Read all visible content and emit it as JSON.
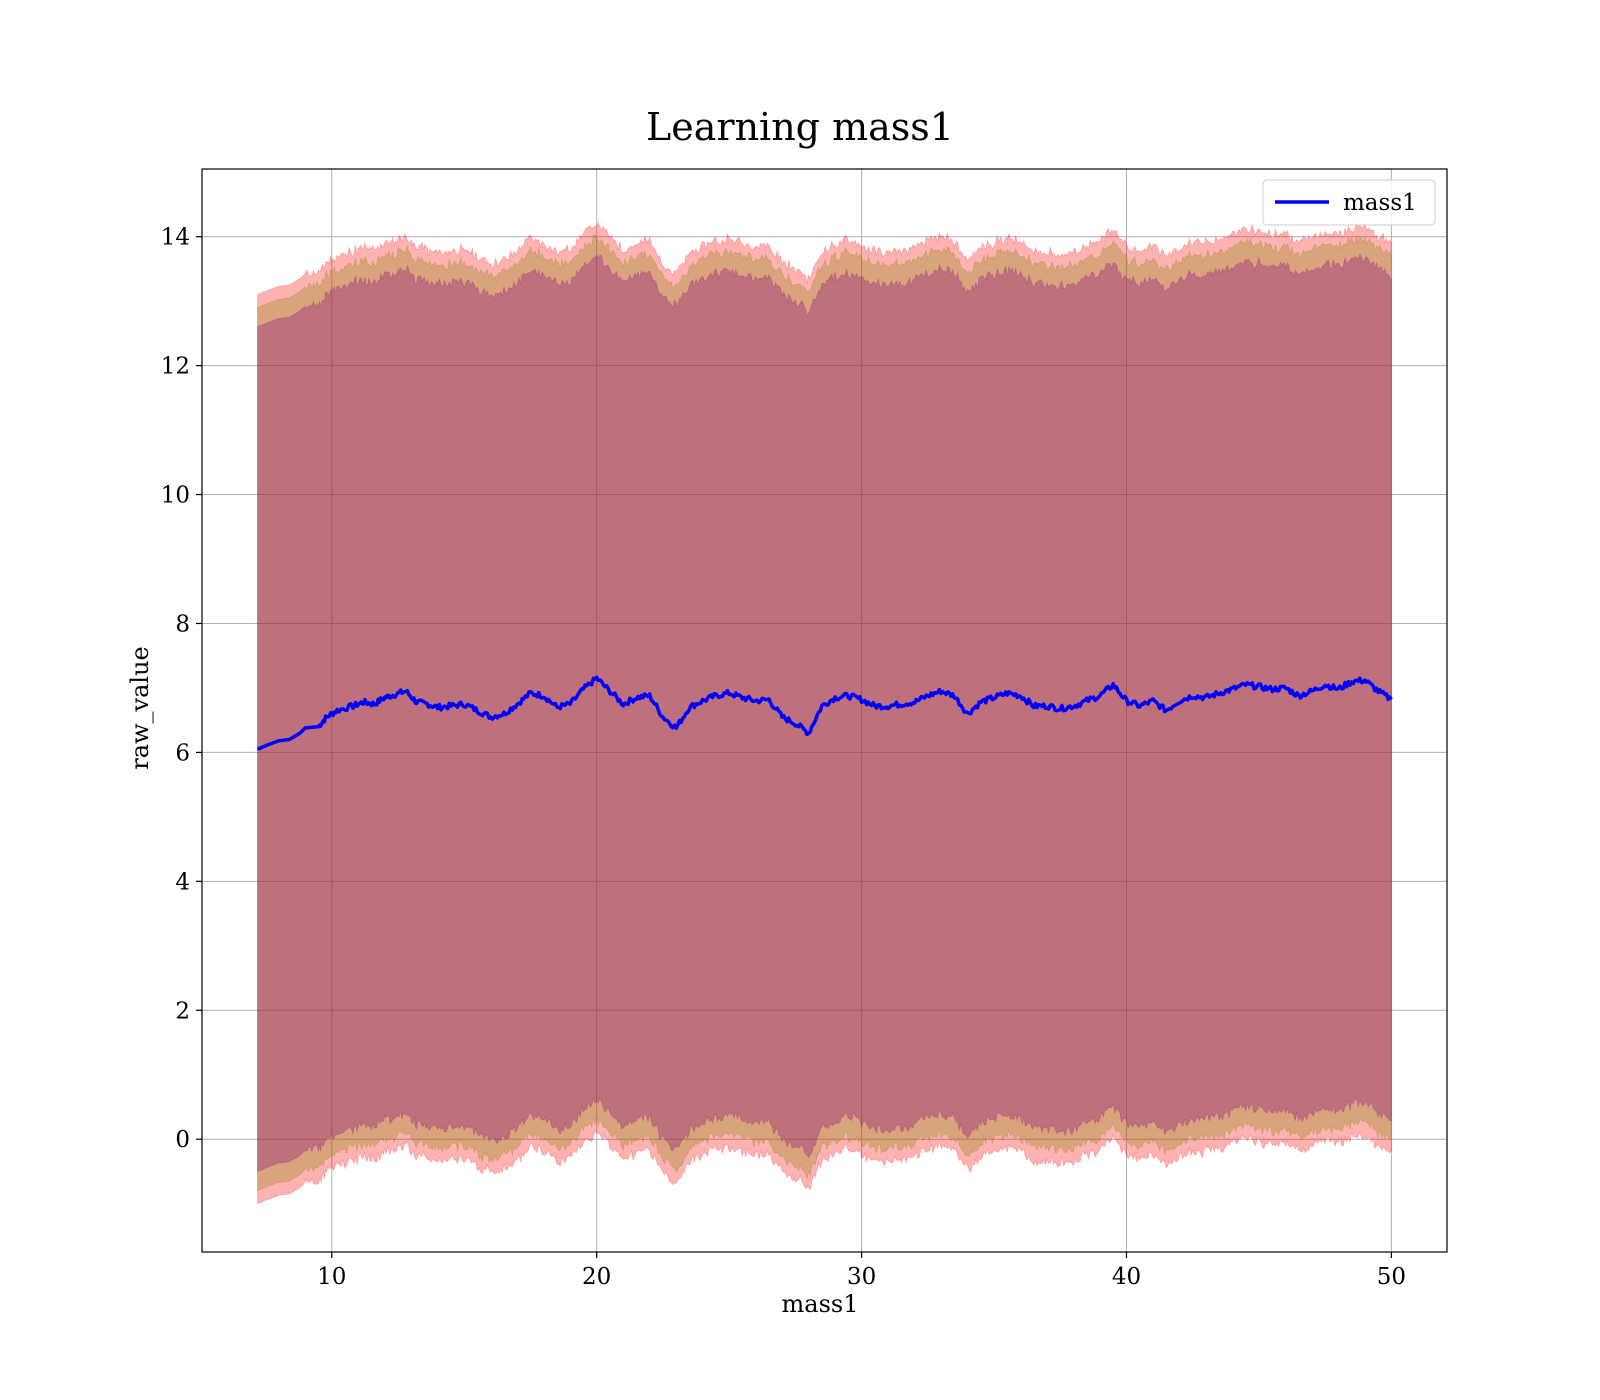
{
  "chart_data": {
    "type": "line",
    "title": "Learning mass1",
    "xlabel": "mass1",
    "ylabel": "raw_value",
    "xlim": [
      5.1,
      52.1
    ],
    "ylim": [
      -1.75,
      15.05
    ],
    "xticks": [
      10,
      20,
      30,
      40,
      50
    ],
    "yticks": [
      0,
      2,
      4,
      6,
      8,
      10,
      12,
      14
    ],
    "grid": true,
    "legend_position": "top-right",
    "x_range": [
      7.2,
      50.0
    ],
    "series": [
      {
        "name": "mass1",
        "color": "#0000ff",
        "points": [
          [
            7.2,
            6.05
          ],
          [
            7.6,
            6.12
          ],
          [
            8.0,
            6.18
          ],
          [
            8.4,
            6.2
          ],
          [
            8.8,
            6.3
          ],
          [
            9.0,
            6.38
          ],
          [
            9.5,
            6.4
          ],
          [
            9.8,
            6.55
          ],
          [
            10.2,
            6.65
          ],
          [
            10.8,
            6.72
          ],
          [
            11.2,
            6.78
          ],
          [
            11.6,
            6.75
          ],
          [
            12.0,
            6.85
          ],
          [
            12.4,
            6.9
          ],
          [
            12.8,
            6.95
          ],
          [
            13.2,
            6.78
          ],
          [
            13.6,
            6.75
          ],
          [
            14.0,
            6.7
          ],
          [
            14.5,
            6.72
          ],
          [
            15.0,
            6.75
          ],
          [
            15.5,
            6.65
          ],
          [
            16.0,
            6.55
          ],
          [
            16.5,
            6.6
          ],
          [
            17.0,
            6.75
          ],
          [
            17.5,
            6.92
          ],
          [
            18.0,
            6.88
          ],
          [
            18.5,
            6.7
          ],
          [
            19.0,
            6.75
          ],
          [
            19.5,
            6.98
          ],
          [
            20.0,
            7.15
          ],
          [
            20.5,
            6.95
          ],
          [
            21.0,
            6.75
          ],
          [
            21.5,
            6.85
          ],
          [
            22.0,
            6.88
          ],
          [
            22.5,
            6.55
          ],
          [
            23.0,
            6.38
          ],
          [
            23.5,
            6.7
          ],
          [
            24.0,
            6.8
          ],
          [
            24.5,
            6.88
          ],
          [
            25.0,
            6.92
          ],
          [
            25.5,
            6.85
          ],
          [
            26.0,
            6.8
          ],
          [
            26.5,
            6.82
          ],
          [
            27.0,
            6.55
          ],
          [
            27.5,
            6.45
          ],
          [
            28.0,
            6.3
          ],
          [
            28.5,
            6.72
          ],
          [
            29.0,
            6.85
          ],
          [
            29.5,
            6.88
          ],
          [
            30.0,
            6.82
          ],
          [
            30.5,
            6.72
          ],
          [
            31.0,
            6.72
          ],
          [
            31.5,
            6.75
          ],
          [
            32.0,
            6.78
          ],
          [
            32.5,
            6.88
          ],
          [
            33.0,
            6.95
          ],
          [
            33.5,
            6.88
          ],
          [
            34.0,
            6.6
          ],
          [
            34.5,
            6.78
          ],
          [
            35.0,
            6.85
          ],
          [
            35.5,
            6.92
          ],
          [
            36.0,
            6.88
          ],
          [
            36.5,
            6.72
          ],
          [
            37.0,
            6.72
          ],
          [
            37.5,
            6.68
          ],
          [
            38.0,
            6.72
          ],
          [
            38.5,
            6.8
          ],
          [
            39.0,
            6.88
          ],
          [
            39.5,
            7.05
          ],
          [
            40.0,
            6.8
          ],
          [
            40.5,
            6.72
          ],
          [
            41.0,
            6.8
          ],
          [
            41.5,
            6.65
          ],
          [
            42.0,
            6.8
          ],
          [
            42.5,
            6.88
          ],
          [
            43.0,
            6.85
          ],
          [
            43.5,
            6.92
          ],
          [
            44.0,
            6.98
          ],
          [
            44.5,
            7.05
          ],
          [
            45.0,
            7.02
          ],
          [
            45.5,
            6.98
          ],
          [
            46.0,
            7.0
          ],
          [
            46.5,
            6.88
          ],
          [
            47.0,
            6.95
          ],
          [
            47.5,
            7.05
          ],
          [
            48.0,
            6.98
          ],
          [
            48.5,
            7.1
          ],
          [
            49.0,
            7.12
          ],
          [
            49.5,
            6.95
          ],
          [
            50.0,
            6.82
          ]
        ]
      }
    ],
    "bands": [
      {
        "color": "#ff0000",
        "opacity": 0.3,
        "offset": [
          -7.05,
          7.05
        ]
      },
      {
        "color": "#808000",
        "opacity": 0.3,
        "offset": [
          -6.85,
          6.85
        ]
      },
      {
        "color": "#800080",
        "opacity": 0.3,
        "offset": [
          -6.55,
          6.55
        ]
      }
    ]
  }
}
